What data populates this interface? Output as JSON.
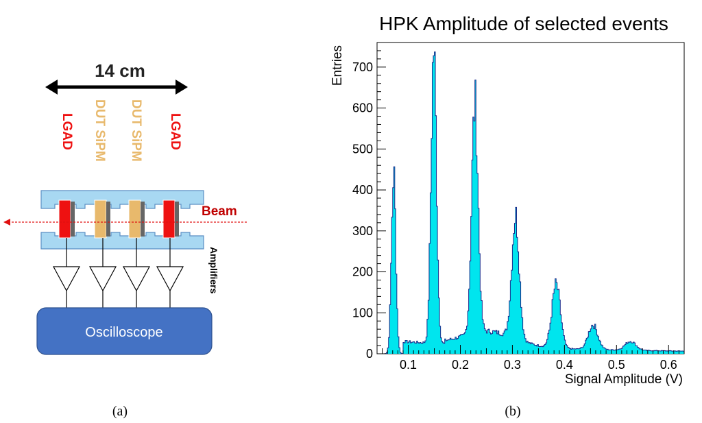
{
  "panel_a": {
    "scale_label": "14 cm",
    "detectors": [
      {
        "label": "LGAD",
        "color": "#ee1111"
      },
      {
        "label": "DUT SiPM",
        "color": "#e8b96c"
      },
      {
        "label": "DUT SiPM",
        "color": "#e8b96c"
      },
      {
        "label": "LGAD",
        "color": "#ee1111"
      }
    ],
    "beam_label": "Beam",
    "amplifiers_label": "Amplifiers",
    "oscilloscope_label": "Oscilloscope",
    "caption": "(a)",
    "colors": {
      "holder": "#a8d8f2",
      "holder_stroke": "#5b8fc4",
      "beam": "#e01010",
      "beam_label": "#c00000",
      "oscilloscope": "#4472c4",
      "plate": "#666666"
    }
  },
  "panel_b": {
    "caption": "(b)",
    "chart_data": {
      "type": "bar",
      "title": "HPK Amplitude of selected events",
      "xlabel": "Signal Amplitude (V)",
      "ylabel": "Entries",
      "xlim": [
        0.04,
        0.63
      ],
      "ylim": [
        0,
        760
      ],
      "xticks": [
        "0.1",
        "0.2",
        "0.3",
        "0.4",
        "0.5",
        "0.6"
      ],
      "yticks": [
        "0",
        "100",
        "200",
        "300",
        "400",
        "500",
        "600",
        "700"
      ],
      "peaks": [
        {
          "x": 0.072,
          "height": 440
        },
        {
          "x": 0.149,
          "height": 720
        },
        {
          "x": 0.228,
          "height": 558
        },
        {
          "x": 0.306,
          "height": 300
        },
        {
          "x": 0.384,
          "height": 155
        },
        {
          "x": 0.455,
          "height": 60
        },
        {
          "x": 0.527,
          "height": 22
        }
      ],
      "fill_color": "#00e5ee",
      "line_color": "#1a2a8a"
    }
  }
}
